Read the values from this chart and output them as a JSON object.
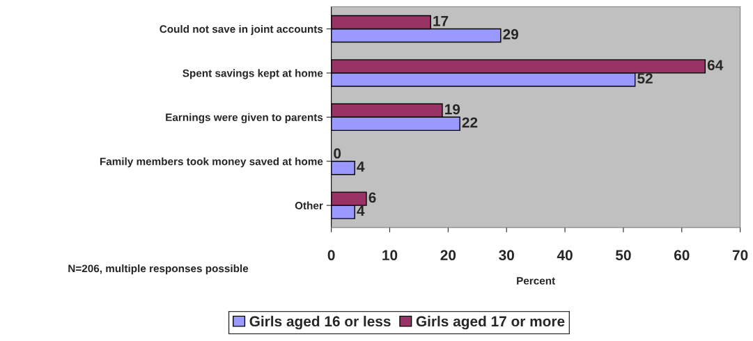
{
  "chart_data": {
    "type": "bar",
    "orientation": "horizontal",
    "categories": [
      "Could not save in joint accounts",
      "Spent savings kept at home",
      "Earnings were given to parents",
      "Family members took money saved at home",
      "Other"
    ],
    "series": [
      {
        "name": "Girls aged 16 or less",
        "color": "#9999ff",
        "values": [
          29,
          52,
          22,
          4,
          4
        ]
      },
      {
        "name": "Girls aged 17 or more",
        "color": "#993366",
        "values": [
          17,
          64,
          19,
          0,
          6
        ]
      }
    ],
    "xlim": [
      0,
      70
    ],
    "xticks": [
      0,
      10,
      20,
      30,
      40,
      50,
      60,
      70
    ],
    "xlabel": "Percent",
    "data_labels": true,
    "grid": false,
    "legend": "bottom",
    "annotations": [
      "N=206, multiple responses possible"
    ]
  }
}
